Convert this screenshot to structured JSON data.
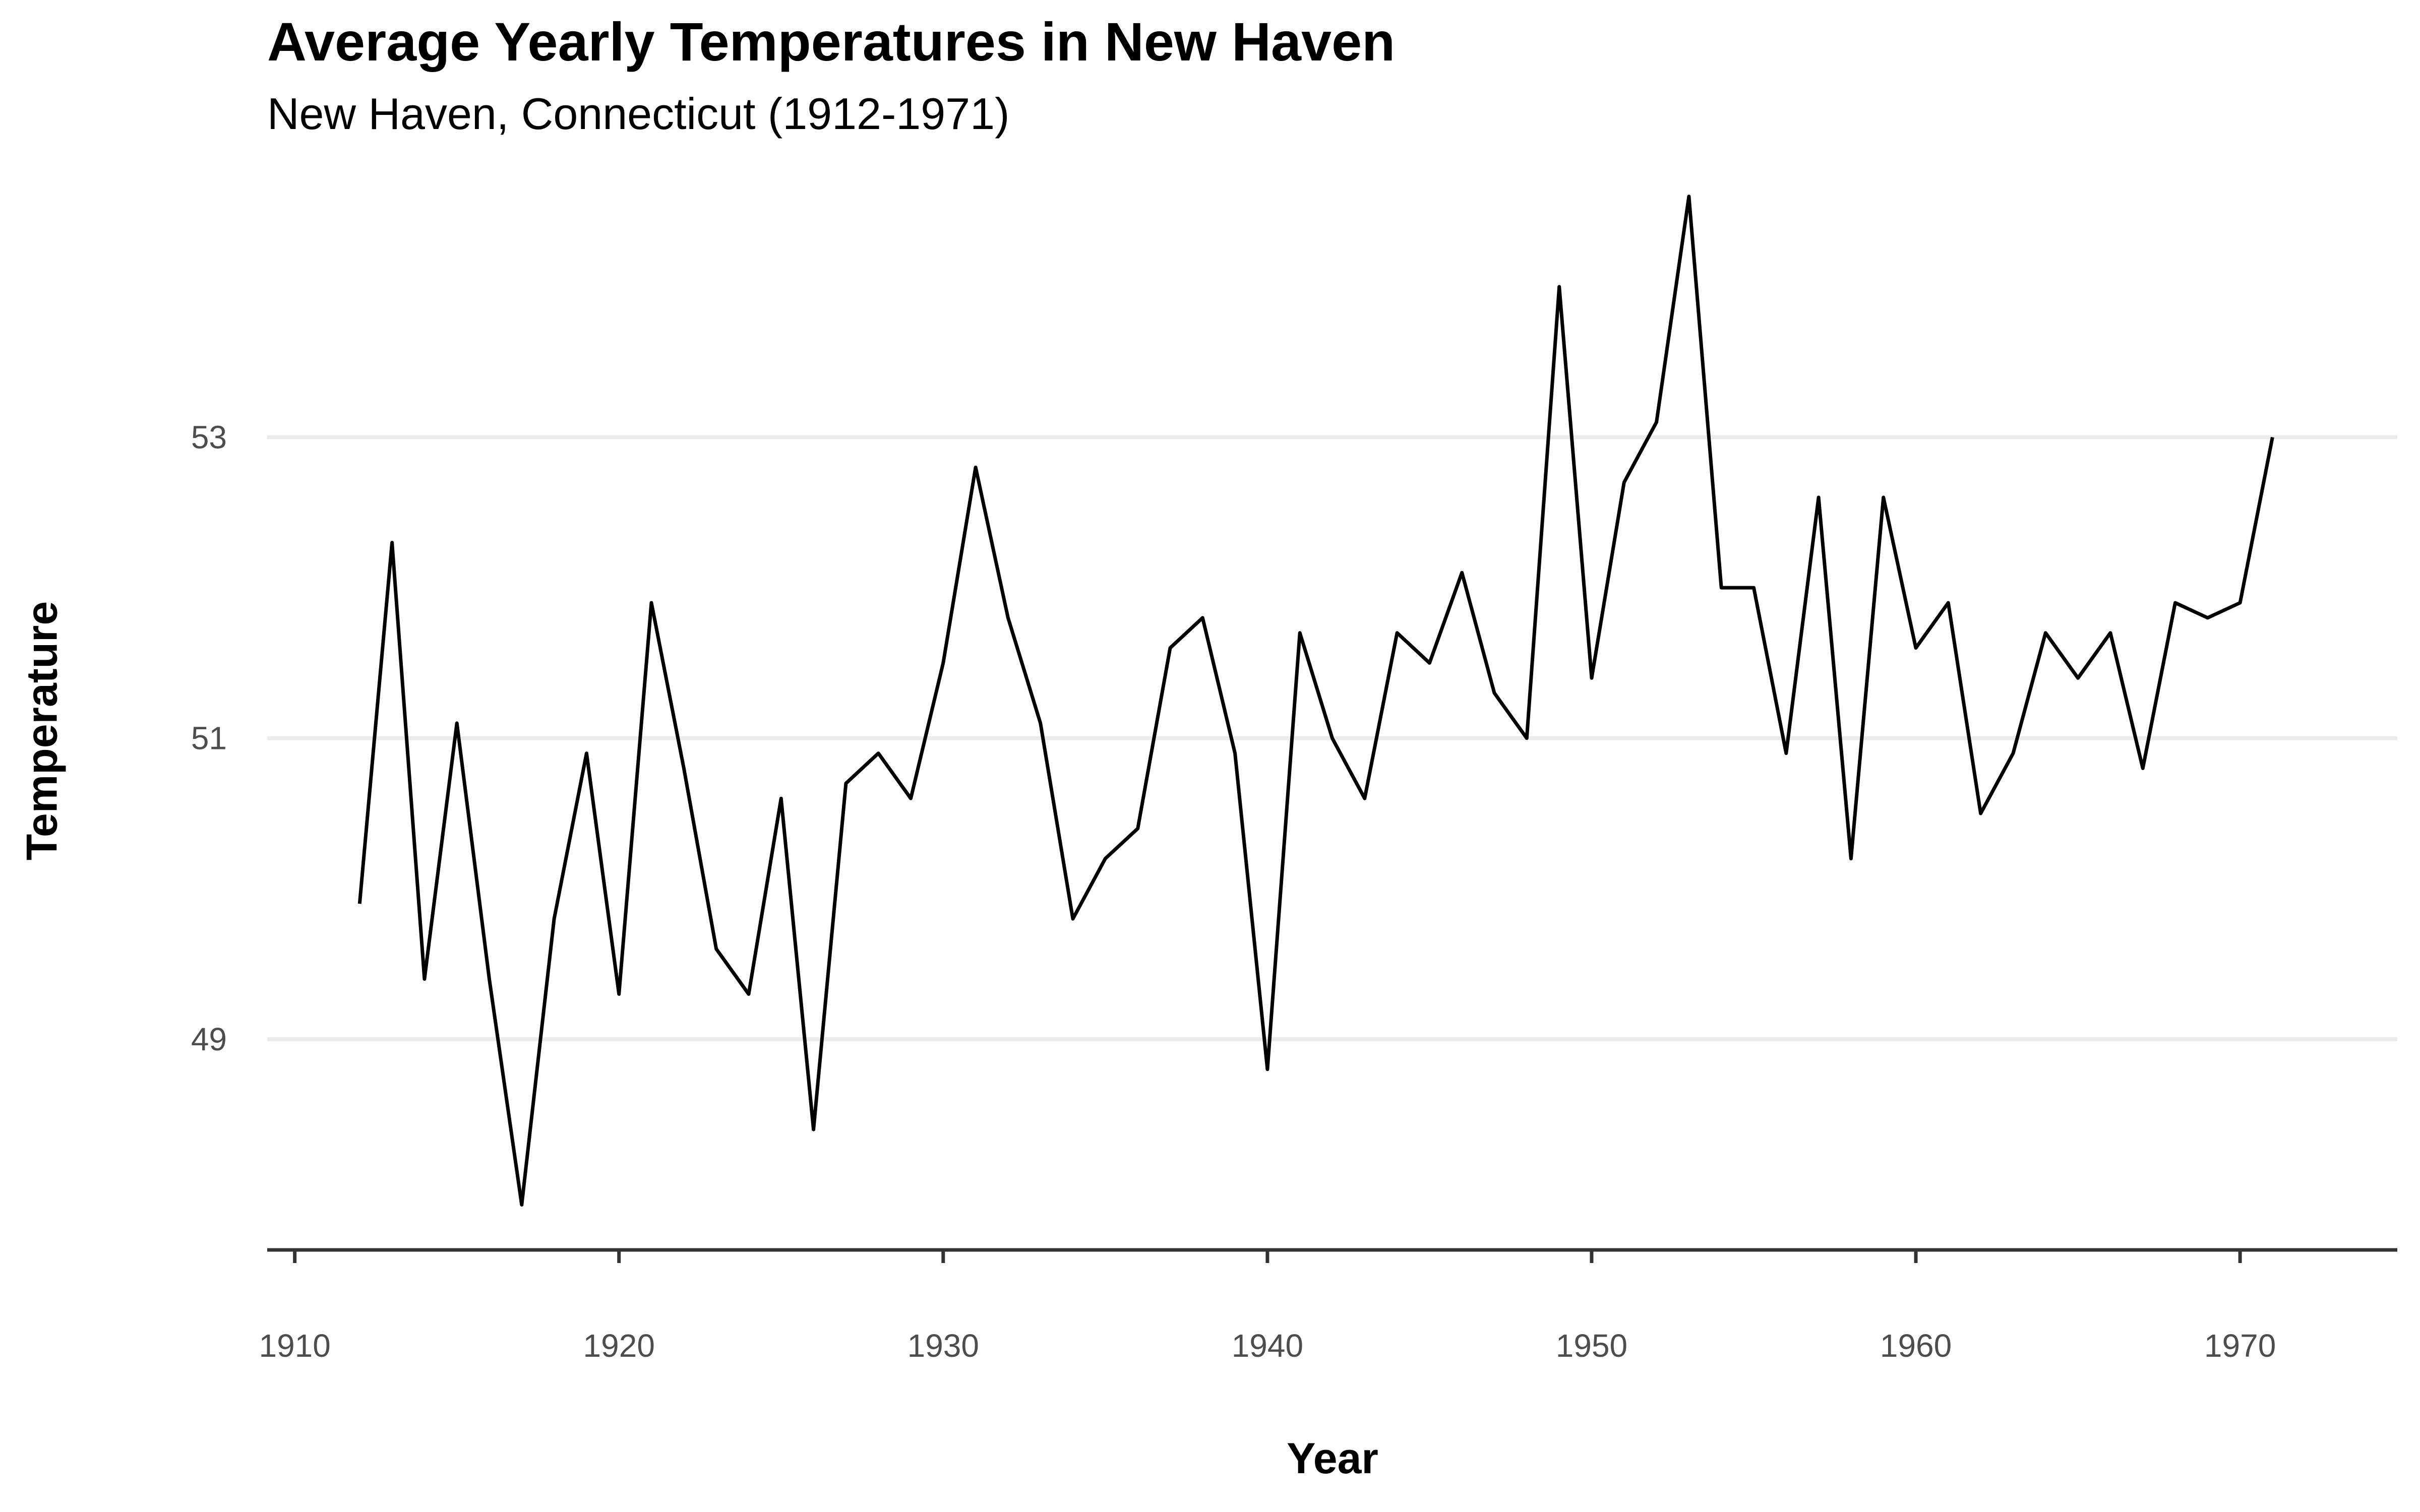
{
  "chart_data": {
    "type": "line",
    "title": "Average Yearly Temperatures in New Haven",
    "subtitle": "New Haven, Connecticut (1912-1971)",
    "xlabel": "Year",
    "ylabel": "Temperature",
    "xlim": [
      1909.15,
      1974.85
    ],
    "ylim": [
      47.6,
      54.8
    ],
    "x_ticks": [
      1910,
      1920,
      1930,
      1940,
      1950,
      1960,
      1970
    ],
    "y_ticks": [
      49,
      51,
      53
    ],
    "grid": "horizontal-major",
    "legend": "none",
    "colors": {
      "line": "#000000",
      "grid": "#ebebeb",
      "axis": "#333333",
      "tick_text": "#4d4d4d"
    },
    "series": [
      {
        "x": [
          1912,
          1913,
          1914,
          1915,
          1916,
          1917,
          1918,
          1919,
          1920,
          1921,
          1922,
          1923,
          1924,
          1925,
          1926,
          1927,
          1928,
          1929,
          1930,
          1931,
          1932,
          1933,
          1934,
          1935,
          1936,
          1937,
          1938,
          1939,
          1940,
          1941,
          1942,
          1943,
          1944,
          1945,
          1946,
          1947,
          1948,
          1949,
          1950,
          1951,
          1952,
          1953,
          1954,
          1955,
          1956,
          1957,
          1958,
          1959,
          1960,
          1961,
          1962,
          1963,
          1964,
          1965,
          1966,
          1967,
          1968,
          1969,
          1970,
          1971
        ],
        "values": [
          49.9,
          52.3,
          49.4,
          51.1,
          49.4,
          47.9,
          49.8,
          50.9,
          49.3,
          51.9,
          50.8,
          49.6,
          49.3,
          50.6,
          48.4,
          50.7,
          50.9,
          50.6,
          51.5,
          52.8,
          51.8,
          51.1,
          49.8,
          50.2,
          50.4,
          51.6,
          51.8,
          50.9,
          48.8,
          51.7,
          51.0,
          50.6,
          51.7,
          51.5,
          52.1,
          51.3,
          51.0,
          54.0,
          51.4,
          52.7,
          53.1,
          54.6,
          52.0,
          52.0,
          50.9,
          52.6,
          50.2,
          52.6,
          51.6,
          51.9,
          50.5,
          50.9,
          51.7,
          51.4,
          51.7,
          50.8,
          51.9,
          51.8,
          51.9,
          53.0
        ]
      }
    ]
  }
}
